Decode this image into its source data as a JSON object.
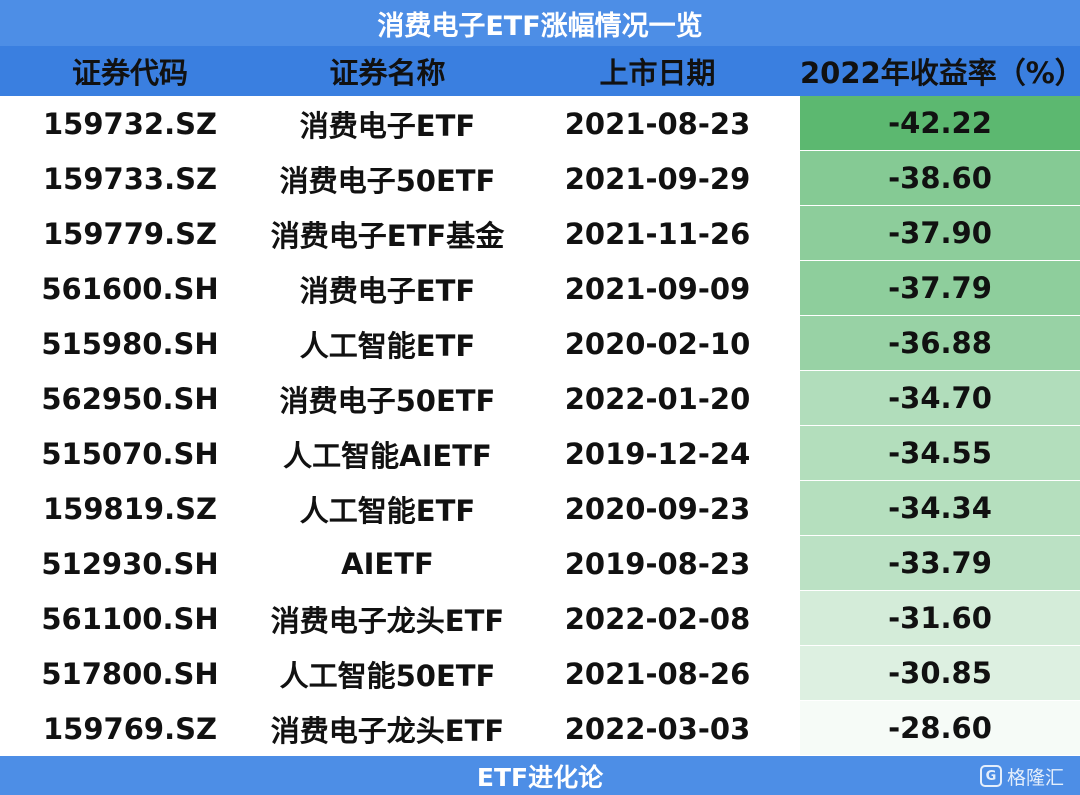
{
  "title": "消费电子ETF涨幅情况一览",
  "footer": "ETF进化论",
  "watermark": {
    "logo_char": "G",
    "text": "格隆汇"
  },
  "colors": {
    "header_bg": "#3a7fe0",
    "title_bg": "#4d8ee6",
    "scale_high": "#5cb870",
    "scale_low": "#f6fbf7"
  },
  "chart_data": {
    "type": "table",
    "columns": [
      "证券代码",
      "证券名称",
      "上市日期",
      "2022年收益率（%）"
    ],
    "rows": [
      {
        "code": "159732.SZ",
        "name": "消费电子ETF",
        "date": "2021-08-23",
        "return": "-42.22",
        "value": -42.22
      },
      {
        "code": "159733.SZ",
        "name": "消费电子50ETF",
        "date": "2021-09-29",
        "return": "-38.60",
        "value": -38.6
      },
      {
        "code": "159779.SZ",
        "name": "消费电子ETF基金",
        "date": "2021-11-26",
        "return": "-37.90",
        "value": -37.9
      },
      {
        "code": "561600.SH",
        "name": "消费电子ETF",
        "date": "2021-09-09",
        "return": "-37.79",
        "value": -37.79
      },
      {
        "code": "515980.SH",
        "name": "人工智能ETF",
        "date": "2020-02-10",
        "return": "-36.88",
        "value": -36.88
      },
      {
        "code": "562950.SH",
        "name": "消费电子50ETF",
        "date": "2022-01-20",
        "return": "-34.70",
        "value": -34.7
      },
      {
        "code": "515070.SH",
        "name": "人工智能AIETF",
        "date": "2019-12-24",
        "return": "-34.55",
        "value": -34.55
      },
      {
        "code": "159819.SZ",
        "name": "人工智能ETF",
        "date": "2020-09-23",
        "return": "-34.34",
        "value": -34.34
      },
      {
        "code": "512930.SH",
        "name": "AIETF",
        "date": "2019-08-23",
        "return": "-33.79",
        "value": -33.79
      },
      {
        "code": "561100.SH",
        "name": "消费电子龙头ETF",
        "date": "2022-02-08",
        "return": "-31.60",
        "value": -31.6
      },
      {
        "code": "517800.SH",
        "name": "人工智能50ETF",
        "date": "2021-08-26",
        "return": "-30.85",
        "value": -30.85
      },
      {
        "code": "159769.SZ",
        "name": "消费电子龙头ETF",
        "date": "2022-03-03",
        "return": "-28.60",
        "value": -28.6
      }
    ]
  }
}
